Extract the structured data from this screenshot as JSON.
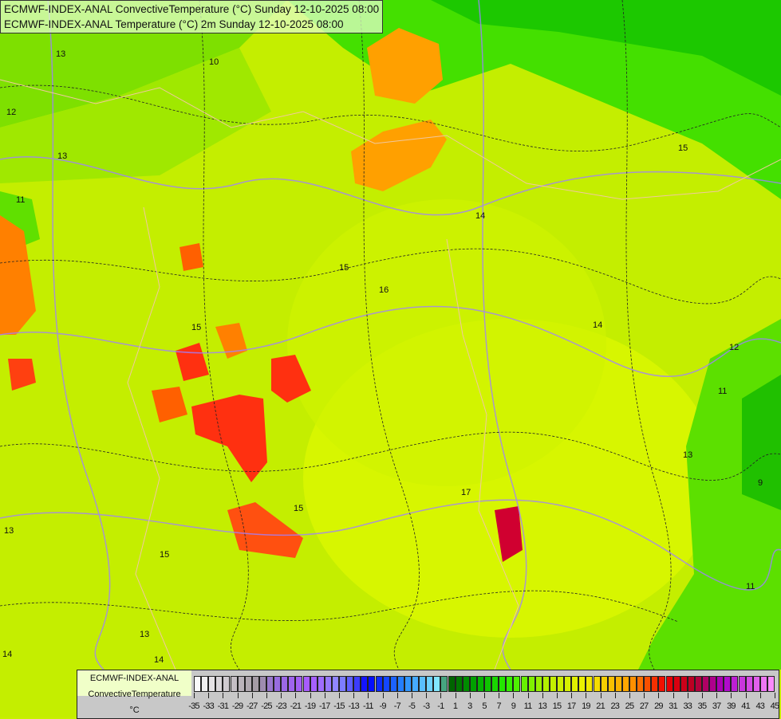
{
  "title": {
    "line1": "ECMWF-INDEX-ANAL ConvectiveTemperature (°C) Sunday 12-10-2025 08:00",
    "line2": "ECMWF-INDEX-ANAL Temperature (°C) 2m Sunday 12-10-2025 08:00"
  },
  "legend": {
    "model": "ECMWF-INDEX-ANAL",
    "parameter": "ConvectiveTemperature",
    "unit": "°C",
    "min": -35,
    "max": 45,
    "step": 1,
    "tick_labels": [
      "-35",
      "-33",
      "-31",
      "-29",
      "-27",
      "-25",
      "-23",
      "-21",
      "-19",
      "-17",
      "-15",
      "-13",
      "-11",
      "-9",
      "-7",
      "-5",
      "-3",
      "-1",
      "1",
      "3",
      "5",
      "7",
      "9",
      "11",
      "13",
      "15",
      "17",
      "19",
      "21",
      "23",
      "25",
      "27",
      "29",
      "31",
      "33",
      "35",
      "37",
      "39",
      "41",
      "43",
      "45"
    ]
  },
  "contour_labels": [
    "13",
    "12",
    "10",
    "13",
    "11",
    "15",
    "16",
    "14",
    "14",
    "15",
    "12",
    "11",
    "9",
    "11",
    "13",
    "17",
    "15",
    "14",
    "13",
    "15",
    "14",
    "15",
    "13"
  ]
}
